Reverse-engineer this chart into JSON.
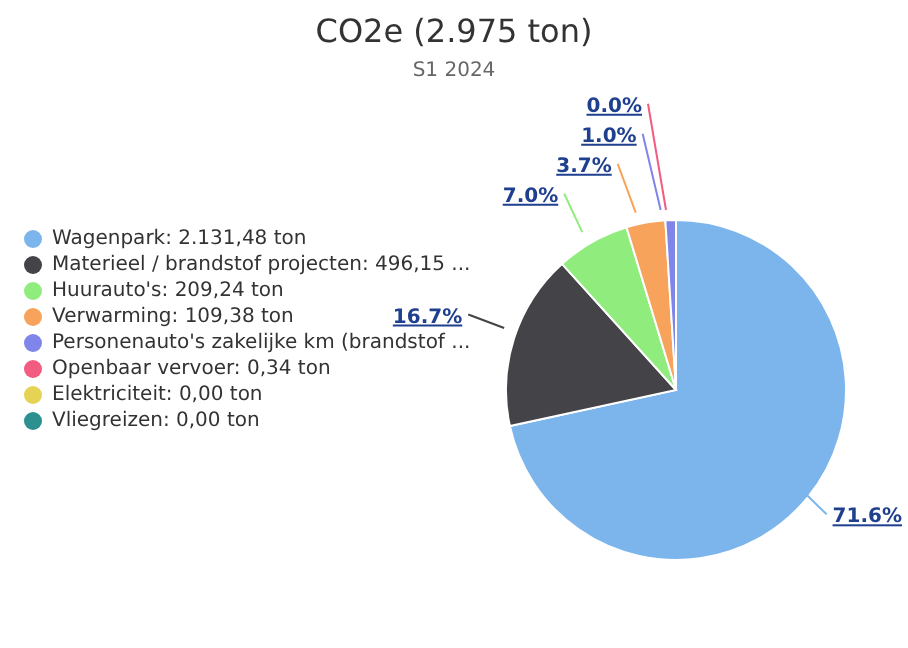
{
  "chart_data": {
    "type": "pie",
    "title": "CO2e (2.975 ton)",
    "subtitle": "S1 2024",
    "legend": "left",
    "categories": [
      "Wagenpark: 2.131,48 ton",
      "Materieel / brandstof projecten: 496,15 ...",
      "Huurauto's: 209,24 ton",
      "Verwarming: 109,38 ton",
      "Personenauto's zakelijke km (brandstof ...",
      "Openbaar vervoer: 0,34 ton",
      "Elektriciteit: 0,00 ton",
      "Vliegreizen: 0,00 ton"
    ],
    "values": [
      71.6,
      16.7,
      7.0,
      3.7,
      1.0,
      0.0,
      0,
      0
    ],
    "colors": [
      "#7cb5ec",
      "#434348",
      "#90ed7d",
      "#f7a35c",
      "#8085e9",
      "#f15c80",
      "#e4d354",
      "#2b908f"
    ],
    "value_labels": [
      "71.6%",
      "16.7%",
      "7.0%",
      "3.7%",
      "1.0%",
      "0.0%",
      null,
      null
    ]
  }
}
